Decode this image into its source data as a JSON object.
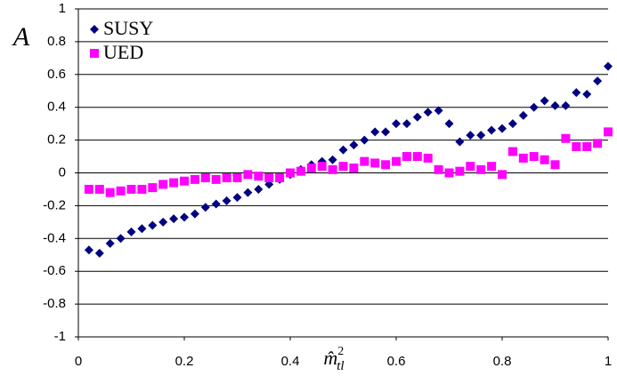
{
  "chart_data": {
    "type": "scatter",
    "y_label": "A",
    "x_label": "m̂",
    "x_label_sup": "2",
    "x_label_sub": "tl",
    "x": [
      0.02,
      0.04,
      0.06,
      0.08,
      0.1,
      0.12,
      0.14,
      0.16,
      0.18,
      0.2,
      0.22,
      0.24,
      0.26,
      0.28,
      0.3,
      0.32,
      0.34,
      0.36,
      0.38,
      0.4,
      0.42,
      0.44,
      0.46,
      0.48,
      0.5,
      0.52,
      0.54,
      0.56,
      0.58,
      0.6,
      0.62,
      0.64,
      0.66,
      0.68,
      0.7,
      0.72,
      0.74,
      0.76,
      0.78,
      0.8,
      0.82,
      0.84,
      0.86,
      0.88,
      0.9,
      0.92,
      0.94,
      0.96,
      0.98,
      1.0
    ],
    "series": [
      {
        "name": "SUSY",
        "color": "#000080",
        "marker": "diamond",
        "values": [
          -0.47,
          -0.49,
          -0.43,
          -0.4,
          -0.36,
          -0.34,
          -0.32,
          -0.3,
          -0.28,
          -0.27,
          -0.25,
          -0.21,
          -0.19,
          -0.17,
          -0.15,
          -0.12,
          -0.1,
          -0.07,
          -0.04,
          -0.01,
          0.02,
          0.05,
          0.07,
          0.08,
          0.14,
          0.17,
          0.2,
          0.25,
          0.25,
          0.3,
          0.3,
          0.34,
          0.37,
          0.38,
          0.3,
          0.19,
          0.23,
          0.23,
          0.26,
          0.27,
          0.3,
          0.35,
          0.4,
          0.44,
          0.41,
          0.41,
          0.49,
          0.48,
          0.56,
          0.65
        ]
      },
      {
        "name": "UED",
        "color": "#ff00ff",
        "marker": "square",
        "values": [
          -0.1,
          -0.1,
          -0.12,
          -0.11,
          -0.1,
          -0.1,
          -0.09,
          -0.07,
          -0.06,
          -0.05,
          -0.04,
          -0.03,
          -0.04,
          -0.03,
          -0.03,
          -0.01,
          -0.02,
          -0.03,
          -0.03,
          0.0,
          0.01,
          0.03,
          0.04,
          0.02,
          0.04,
          0.03,
          0.07,
          0.06,
          0.05,
          0.07,
          0.1,
          0.1,
          0.09,
          0.02,
          0.0,
          0.01,
          0.04,
          0.02,
          0.04,
          -0.01,
          0.13,
          0.09,
          0.1,
          0.08,
          0.05,
          0.21,
          0.16,
          0.16,
          0.18,
          0.25
        ]
      }
    ],
    "xlim": [
      0,
      1
    ],
    "xticks": [
      0,
      0.2,
      0.4,
      0.6,
      0.8,
      1
    ],
    "ylim": [
      -1,
      1
    ],
    "yticks": [
      -1,
      -0.8,
      -0.6,
      -0.4,
      -0.2,
      0,
      0.2,
      0.4,
      0.6,
      0.8,
      1
    ],
    "grid": true,
    "legend": "upper-left"
  }
}
